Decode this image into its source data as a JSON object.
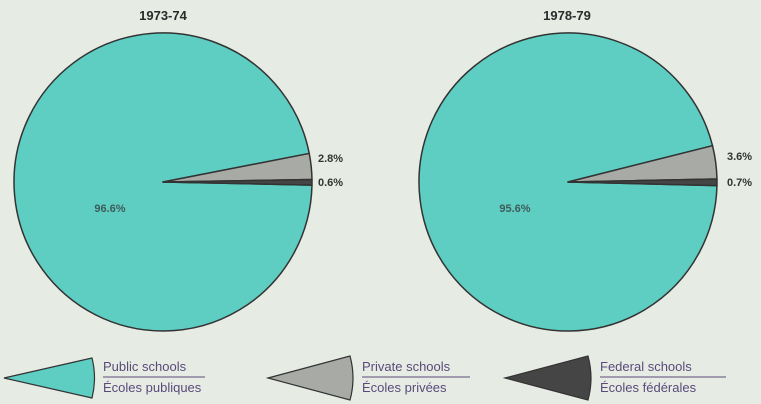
{
  "chart_data": [
    {
      "type": "pie",
      "title": "1973-74",
      "slices": [
        {
          "name": "Public schools",
          "value": 96.6,
          "label": "96.6%"
        },
        {
          "name": "Private schools",
          "value": 2.8,
          "label": "2.8%"
        },
        {
          "name": "Federal schools",
          "value": 0.6,
          "label": "0.6%"
        }
      ]
    },
    {
      "type": "pie",
      "title": "1978-79",
      "slices": [
        {
          "name": "Public schools",
          "value": 95.6,
          "label": "95.6%"
        },
        {
          "name": "Private schools",
          "value": 3.6,
          "label": "3.6%"
        },
        {
          "name": "Federal schools",
          "value": 0.7,
          "label": "0.7%"
        }
      ]
    }
  ],
  "legend": [
    {
      "en": "Public schools",
      "fr": "Écoles publiques",
      "color": "#5ecdc2"
    },
    {
      "en": "Private schools",
      "fr": "Écoles privées",
      "color": "#a7aaa5"
    },
    {
      "en": "Federal schools",
      "fr": "Écoles fédérales",
      "color": "#454545"
    }
  ],
  "colors": {
    "public": "#5ecdc2",
    "private": "#a7aaa5",
    "federal": "#454545",
    "outline": "#333333",
    "background": "#e6ece4"
  }
}
